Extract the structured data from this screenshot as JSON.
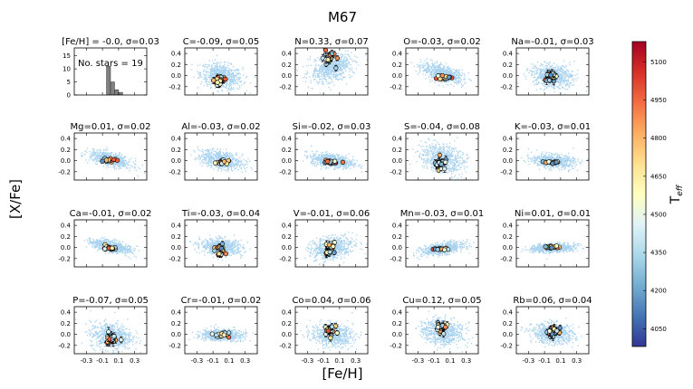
{
  "figure": {
    "title": "M67",
    "xlabel": "[Fe/H]",
    "ylabel": "[X/Fe]",
    "colorbar": {
      "label": "T",
      "label_sub": "eff",
      "ticks": [
        "4050",
        "4200",
        "4350",
        "4500",
        "4650",
        "4800",
        "4950",
        "5100"
      ],
      "range": [
        3980,
        5180
      ],
      "colormap": "RdYlBu_r",
      "colors": [
        "#313695",
        "#4575b4",
        "#74add1",
        "#abd9e9",
        "#e0f3f8",
        "#ffffbf",
        "#fee090",
        "#fdae61",
        "#f46d43",
        "#d73027",
        "#a50026"
      ]
    }
  },
  "colors": {
    "background_cloud": "#a9d3f0",
    "histogram_bar": "#808080",
    "error_bar": "#000000"
  },
  "chart_data": [
    {
      "type": "histogram",
      "title": "[Fe/H] = -0.0, σ=0.03",
      "annotation": "No. stars = 19",
      "yticks": [
        "0",
        "5",
        "10",
        "15"
      ],
      "ylim": [
        0,
        18
      ],
      "xlim": [
        -0.45,
        0.45
      ],
      "bins": [
        {
          "x0": -0.05,
          "x1": 0.0,
          "count": 11
        },
        {
          "x0": 0.0,
          "x1": 0.05,
          "count": 5
        },
        {
          "x0": 0.05,
          "x1": 0.1,
          "count": 2
        },
        {
          "x0": 0.1,
          "x1": 0.15,
          "count": 1
        }
      ]
    },
    {
      "type": "scatter",
      "element": "C",
      "title": "C=-0.09, σ=0.05",
      "yticks": [
        "0.4",
        "0.2",
        "0.0",
        "-0.2"
      ],
      "ylim": [
        -0.35,
        0.5
      ],
      "cloud": {
        "slope": -0.25,
        "offset": 0.0,
        "spread": 0.11
      },
      "cluster": {
        "x": -0.02,
        "y": -0.09,
        "sx": 0.04,
        "sy": 0.06,
        "err": 0.05
      }
    },
    {
      "type": "scatter",
      "element": "N",
      "title": "N=0.33, σ=0.07",
      "yticks": [
        "0.4",
        "0.2",
        "0.0",
        "-0.2"
      ],
      "ylim": [
        -0.35,
        0.5
      ],
      "cloud": {
        "slope": 0.35,
        "offset": 0.15,
        "spread": 0.12
      },
      "cluster": {
        "x": -0.02,
        "y": 0.33,
        "sx": 0.04,
        "sy": 0.08,
        "err": 0.06
      }
    },
    {
      "type": "scatter",
      "element": "O",
      "title": "O=-0.03, σ=0.02",
      "yticks": [
        "0.4",
        "0.2",
        "0.0",
        "-0.2"
      ],
      "ylim": [
        -0.35,
        0.5
      ],
      "cloud": {
        "slope": -0.35,
        "offset": 0.05,
        "spread": 0.07
      },
      "cluster": {
        "x": 0.0,
        "y": -0.03,
        "sx": 0.05,
        "sy": 0.02,
        "err": 0.03
      }
    },
    {
      "type": "scatter",
      "element": "Na",
      "title": "Na=-0.01, σ=0.03",
      "yticks": [
        "0.4",
        "0.2",
        "0.0",
        "-0.2"
      ],
      "ylim": [
        -0.35,
        0.5
      ],
      "cloud": {
        "slope": -0.1,
        "offset": 0.0,
        "spread": 0.1
      },
      "cluster": {
        "x": -0.02,
        "y": -0.01,
        "sx": 0.04,
        "sy": 0.04,
        "err": 0.06
      }
    },
    {
      "type": "scatter",
      "element": "Mg",
      "title": "Mg=0.01, σ=0.02",
      "yticks": [
        "0.4",
        "0.2",
        "0.0",
        "-0.2"
      ],
      "ylim": [
        -0.35,
        0.5
      ],
      "cloud": {
        "slope": -0.35,
        "offset": 0.03,
        "spread": 0.06
      },
      "cluster": {
        "x": -0.02,
        "y": 0.01,
        "sx": 0.04,
        "sy": 0.02,
        "err": 0.03
      }
    },
    {
      "type": "scatter",
      "element": "Al",
      "title": "Al=-0.03, σ=0.02",
      "yticks": [
        "0.4",
        "0.2",
        "0.0",
        "-0.2"
      ],
      "ylim": [
        -0.35,
        0.5
      ],
      "cloud": {
        "slope": -0.25,
        "offset": 0.02,
        "spread": 0.08
      },
      "cluster": {
        "x": 0.0,
        "y": -0.03,
        "sx": 0.04,
        "sy": 0.02,
        "err": 0.03
      }
    },
    {
      "type": "scatter",
      "element": "Si",
      "title": "Si=-0.02, σ=0.03",
      "yticks": [
        "0.4",
        "0.2",
        "0.0",
        "-0.2"
      ],
      "ylim": [
        -0.35,
        0.5
      ],
      "cloud": {
        "slope": -0.2,
        "offset": 0.01,
        "spread": 0.06
      },
      "cluster": {
        "x": 0.0,
        "y": -0.02,
        "sx": 0.05,
        "sy": 0.02,
        "err": 0.03
      }
    },
    {
      "type": "scatter",
      "element": "S",
      "title": "S=-0.04, σ=0.08",
      "yticks": [
        "0.4",
        "0.2",
        "0.0",
        "-0.2"
      ],
      "ylim": [
        -0.35,
        0.5
      ],
      "cloud": {
        "slope": -0.3,
        "offset": 0.05,
        "spread": 0.13
      },
      "cluster": {
        "x": -0.03,
        "y": -0.04,
        "sx": 0.04,
        "sy": 0.08,
        "err": 0.06
      }
    },
    {
      "type": "scatter",
      "element": "K",
      "title": "K=-0.03, σ=0.01",
      "yticks": [
        "0.4",
        "0.2",
        "0.0",
        "-0.2"
      ],
      "ylim": [
        -0.35,
        0.5
      ],
      "cloud": {
        "slope": -0.1,
        "offset": 0.0,
        "spread": 0.06
      },
      "cluster": {
        "x": 0.0,
        "y": -0.03,
        "sx": 0.05,
        "sy": 0.01,
        "err": 0.02
      }
    },
    {
      "type": "scatter",
      "element": "Ca",
      "title": "Ca=-0.01, σ=0.02",
      "yticks": [
        "0.4",
        "0.2",
        "0.0",
        "-0.2"
      ],
      "ylim": [
        -0.35,
        0.5
      ],
      "cloud": {
        "slope": -0.3,
        "offset": 0.03,
        "spread": 0.05
      },
      "cluster": {
        "x": 0.0,
        "y": -0.01,
        "sx": 0.05,
        "sy": 0.02,
        "err": 0.03
      }
    },
    {
      "type": "scatter",
      "element": "Ti",
      "title": "Ti=-0.03, σ=0.04",
      "yticks": [
        "0.4",
        "0.2",
        "0.0",
        "-0.2"
      ],
      "ylim": [
        -0.35,
        0.5
      ],
      "cloud": {
        "slope": -0.1,
        "offset": 0.02,
        "spread": 0.07
      },
      "cluster": {
        "x": 0.0,
        "y": -0.03,
        "sx": 0.04,
        "sy": 0.05,
        "err": 0.04
      }
    },
    {
      "type": "scatter",
      "element": "V",
      "title": "V=-0.01, σ=0.06",
      "yticks": [
        "0.4",
        "0.2",
        "0.0",
        "-0.2"
      ],
      "ylim": [
        -0.35,
        0.5
      ],
      "cloud": {
        "slope": 0.3,
        "offset": 0.0,
        "spread": 0.1
      },
      "cluster": {
        "x": -0.02,
        "y": -0.01,
        "sx": 0.03,
        "sy": 0.07,
        "err": 0.06
      }
    },
    {
      "type": "scatter",
      "element": "Mn",
      "title": "Mn=-0.03, σ=0.01",
      "yticks": [
        "0.4",
        "0.2",
        "0.0",
        "-0.2"
      ],
      "ylim": [
        -0.35,
        0.5
      ],
      "cloud": {
        "slope": 0.2,
        "offset": -0.01,
        "spread": 0.05
      },
      "cluster": {
        "x": 0.0,
        "y": -0.03,
        "sx": 0.05,
        "sy": 0.01,
        "err": 0.02
      }
    },
    {
      "type": "scatter",
      "element": "Ni",
      "title": "Ni=0.01, σ=0.01",
      "yticks": [
        "0.4",
        "0.2",
        "0.0",
        "-0.2"
      ],
      "ylim": [
        -0.35,
        0.5
      ],
      "cloud": {
        "slope": 0.05,
        "offset": 0.0,
        "spread": 0.04
      },
      "cluster": {
        "x": 0.0,
        "y": 0.01,
        "sx": 0.05,
        "sy": 0.01,
        "err": 0.02
      }
    },
    {
      "type": "scatter",
      "element": "P",
      "title": "P=-0.07, σ=0.05",
      "yticks": [
        "0.4",
        "0.2",
        "0.0",
        "-0.2"
      ],
      "ylim": [
        -0.35,
        0.5
      ],
      "cloud": {
        "slope": -0.1,
        "offset": -0.02,
        "spread": 0.12
      },
      "cluster": {
        "x": 0.0,
        "y": -0.07,
        "sx": 0.04,
        "sy": 0.05,
        "err": 0.07
      }
    },
    {
      "type": "scatter",
      "element": "Cr",
      "title": "Cr=-0.01, σ=0.02",
      "yticks": [
        "0.4",
        "0.2",
        "0.0",
        "-0.2"
      ],
      "ylim": [
        -0.35,
        0.5
      ],
      "cloud": {
        "slope": 0.0,
        "offset": 0.0,
        "spread": 0.05
      },
      "cluster": {
        "x": 0.0,
        "y": -0.01,
        "sx": 0.05,
        "sy": 0.02,
        "err": 0.02
      }
    },
    {
      "type": "scatter",
      "element": "Co",
      "title": "Co=0.04, σ=0.06",
      "yticks": [
        "0.4",
        "0.2",
        "0.0",
        "-0.2"
      ],
      "ylim": [
        -0.35,
        0.5
      ],
      "cloud": {
        "slope": -0.1,
        "offset": 0.0,
        "spread": 0.1
      },
      "cluster": {
        "x": -0.02,
        "y": 0.04,
        "sx": 0.04,
        "sy": 0.06,
        "err": 0.06
      }
    },
    {
      "type": "scatter",
      "element": "Cu",
      "title": "Cu=0.12, σ=0.05",
      "yticks": [
        "0.4",
        "0.2",
        "0.0",
        "-0.2"
      ],
      "ylim": [
        -0.35,
        0.5
      ],
      "cloud": {
        "slope": -0.15,
        "offset": 0.05,
        "spread": 0.11
      },
      "cluster": {
        "x": -0.02,
        "y": 0.12,
        "sx": 0.04,
        "sy": 0.06,
        "err": 0.06
      }
    },
    {
      "type": "scatter",
      "element": "Rb",
      "title": "Rb=0.06, σ=0.04",
      "yticks": [
        "0.4",
        "0.2",
        "0.0",
        "-0.2"
      ],
      "ylim": [
        -0.35,
        0.5
      ],
      "cloud": {
        "slope": -0.1,
        "offset": 0.02,
        "spread": 0.09
      },
      "cluster": {
        "x": 0.0,
        "y": 0.06,
        "sx": 0.04,
        "sy": 0.05,
        "err": 0.06
      }
    }
  ],
  "xaxis": {
    "xlim": [
      -0.45,
      0.45
    ],
    "ticks": [
      -0.3,
      -0.1,
      0.1,
      0.3
    ],
    "tick_labels": [
      "-0.3",
      "-0.1",
      "0.1",
      "0.3"
    ]
  }
}
